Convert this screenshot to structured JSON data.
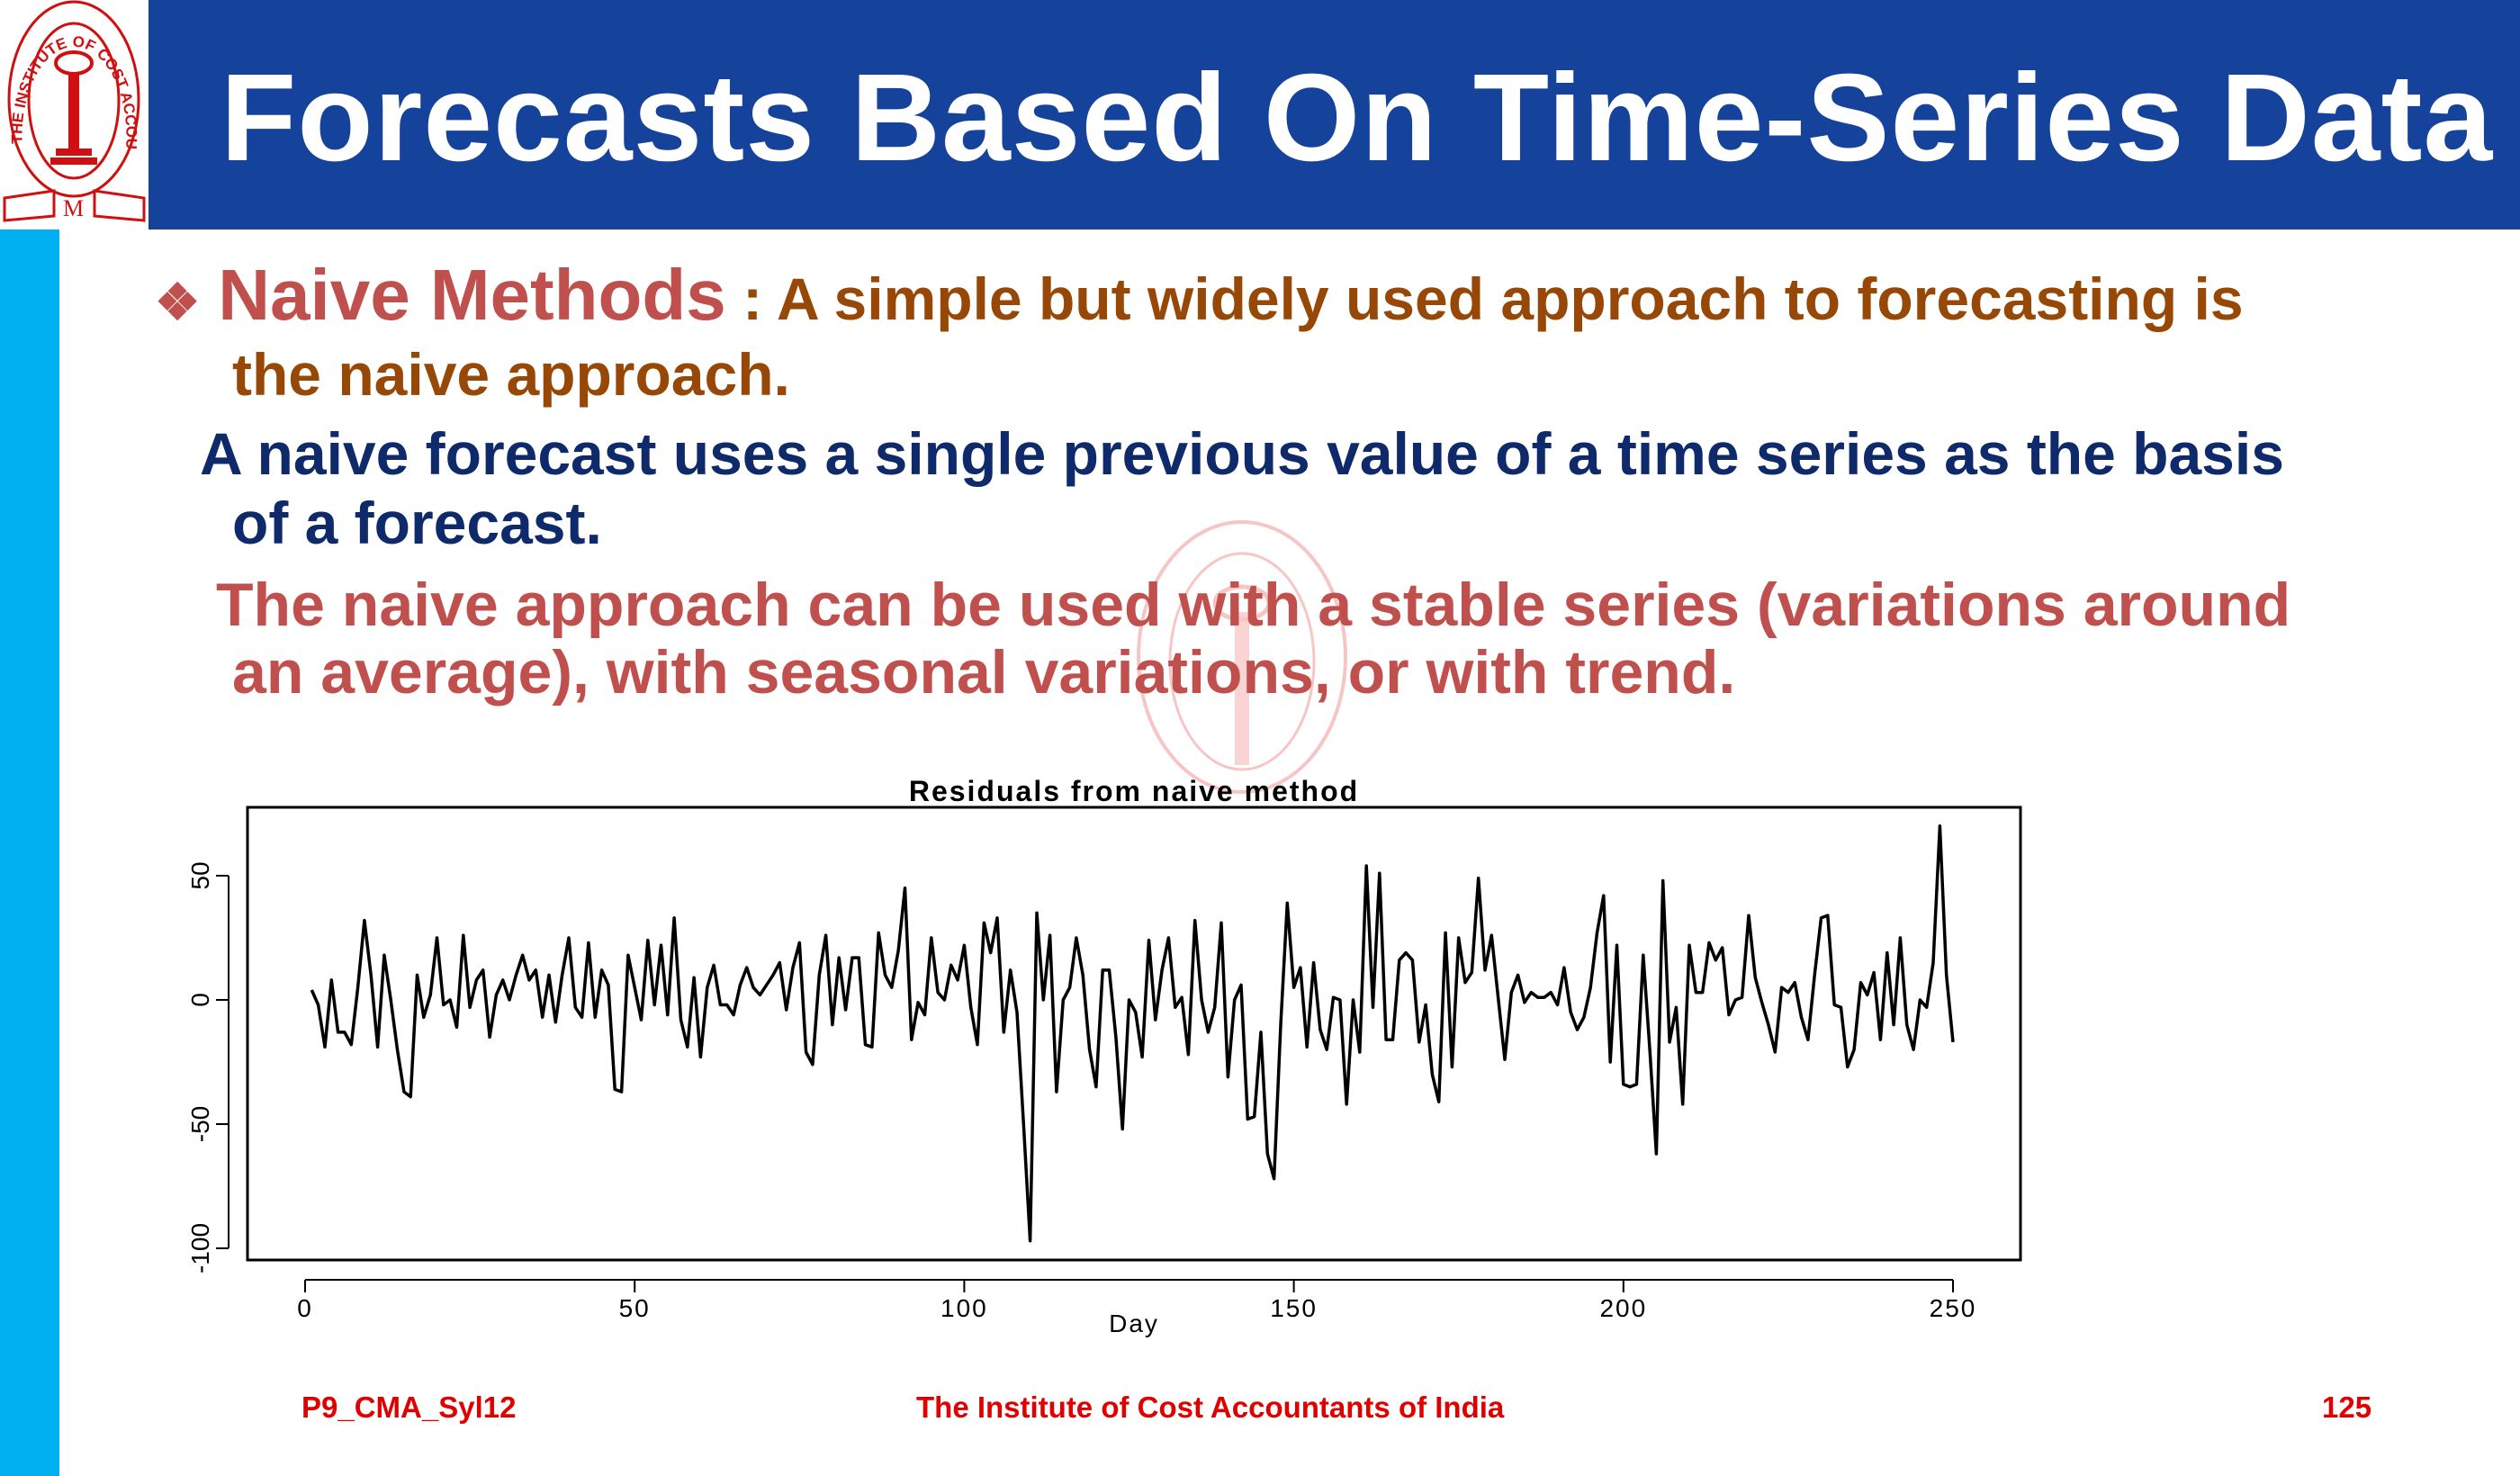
{
  "header": {
    "title": "Forecasts Based On Time-Series Data",
    "logo_text": "THE INSTITUTE OF COST ACCOUNTANTS OF INDIA"
  },
  "content": {
    "bullet_icon": "diamond-bullet",
    "heading": "Naive Methods",
    "line1_rest": " : A simple but widely used approach to forecasting is",
    "line1_cont": "the naive approach.",
    "line2": "A naive forecast uses a single previous value of a time series as the basis",
    "line2_cont": "of a forecast.",
    "line3": "The naive approach can be used with a stable series (variations around",
    "line3_cont": "an average), with seasonal variations, or       with trend."
  },
  "chart_data": {
    "type": "line",
    "title": "Residuals from naive method",
    "xlabel": "Day",
    "ylabel": "",
    "xlim": [
      0,
      250
    ],
    "ylim": [
      -100,
      70
    ],
    "xticks": [
      0,
      50,
      100,
      150,
      200,
      250
    ],
    "yticks": [
      -100,
      -50,
      0,
      50
    ],
    "x_start": 1,
    "values": [
      4,
      -2,
      -19,
      8,
      -13,
      -13,
      -18,
      5,
      32,
      10,
      -19,
      18,
      0,
      -20,
      -37,
      -39,
      10,
      -7,
      2,
      25,
      -2,
      0,
      -11,
      26,
      -3,
      8,
      12,
      -15,
      2,
      8,
      0,
      10,
      18,
      8,
      12,
      -7,
      10,
      -9,
      10,
      25,
      -3,
      -7,
      23,
      -7,
      12,
      6,
      -36,
      -37,
      18,
      5,
      -8,
      24,
      -2,
      22,
      -6,
      33,
      -8,
      -19,
      9,
      -23,
      5,
      14,
      -2,
      -2,
      -6,
      6,
      13,
      5,
      2,
      6,
      10,
      15,
      -4,
      13,
      23,
      -21,
      -26,
      10,
      26,
      -10,
      17,
      -4,
      17,
      17,
      -18,
      -19,
      27,
      10,
      5,
      20,
      45,
      -16,
      -1,
      -6,
      25,
      3,
      0,
      14,
      8,
      22,
      -3,
      -18,
      31,
      19,
      33,
      -13,
      12,
      -5,
      -50,
      -97,
      35,
      0,
      26,
      -37,
      0,
      5,
      25,
      10,
      -20,
      -35,
      12,
      12,
      -15,
      -52,
      0,
      -5,
      -23,
      24,
      -8,
      12,
      25,
      -3,
      1,
      -22,
      32,
      0,
      -13,
      -3,
      31,
      -31,
      0,
      6,
      -48,
      -47,
      -13,
      -62,
      -72,
      -10,
      39,
      5,
      13,
      -19,
      15,
      -12,
      -20,
      1,
      0,
      -42,
      0,
      -21,
      54,
      -3,
      51,
      -16,
      -16,
      16,
      19,
      16,
      -17,
      -2,
      -30,
      -41,
      27,
      -27,
      25,
      7,
      11,
      49,
      12,
      26,
      1,
      -24,
      3,
      10,
      -1,
      3,
      1,
      1,
      3,
      -2,
      13,
      -5,
      -12,
      -7,
      5,
      27,
      42,
      -25,
      22,
      -34,
      -35,
      -34,
      18,
      -20,
      -62,
      48,
      -17,
      -3,
      -42,
      22,
      3,
      3,
      23,
      16,
      21,
      -6,
      0,
      1,
      34,
      9,
      -1,
      -10,
      -21,
      5,
      3,
      7,
      -7,
      -16,
      10,
      33,
      34,
      -2,
      -3,
      -27,
      -20,
      7,
      2,
      11,
      -16,
      19,
      -10,
      25,
      -10,
      -20,
      0,
      -3,
      15,
      70,
      10,
      -17
    ],
    "grid": false,
    "line_color": "#000000"
  },
  "footer": {
    "left": "P9_CMA_Syl12",
    "center": "The Institute of Cost Accountants of India",
    "page": "125"
  },
  "colors": {
    "header_bg": "#15429a",
    "sidebar": "#00b0f0",
    "heading": "#c0504d",
    "brown": "#984806",
    "navy": "#0e2a6b",
    "footer": "#e00000"
  }
}
